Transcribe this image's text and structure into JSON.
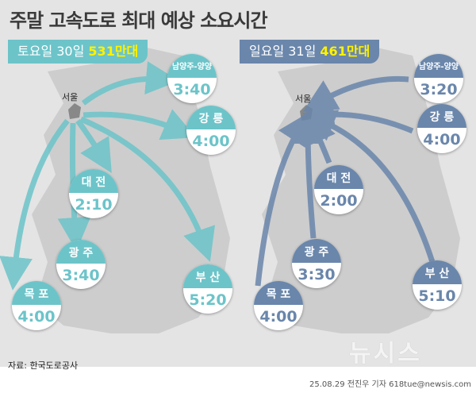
{
  "title": "주말 고속도로 최대 예상 소요시간",
  "colors": {
    "saturday": "#6cc4c9",
    "sunday": "#6a86ab",
    "highlight": "#fff200"
  },
  "saturday": {
    "day": "토요일 30일",
    "traffic": "531만대",
    "seoul": "서울",
    "routes": [
      {
        "name": "남양주-양양",
        "time": "3:40"
      },
      {
        "name": "강 릉",
        "time": "4:00"
      },
      {
        "name": "대 전",
        "time": "2:10"
      },
      {
        "name": "광 주",
        "time": "3:40"
      },
      {
        "name": "부 산",
        "time": "5:20"
      },
      {
        "name": "목 포",
        "time": "4:00"
      }
    ]
  },
  "sunday": {
    "day": "일요일 31일",
    "traffic": "461만대",
    "seoul": "서울",
    "routes": [
      {
        "name": "남양주-양양",
        "time": "3:20"
      },
      {
        "name": "강 릉",
        "time": "4:00"
      },
      {
        "name": "대 전",
        "time": "2:00"
      },
      {
        "name": "광 주",
        "time": "3:30"
      },
      {
        "name": "부 산",
        "time": "5:10"
      },
      {
        "name": "목 포",
        "time": "4:00"
      }
    ]
  },
  "source": "자료: 한국도로공사",
  "logo": "뉴시스",
  "credit": "25.08.29 전진우 기자 618tue@newsis.com"
}
